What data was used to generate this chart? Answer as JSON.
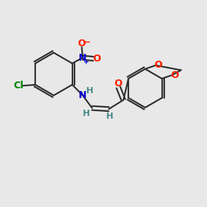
{
  "bg_color": "#e8e8e8",
  "bond_color": "#2d2d2d",
  "atom_colors": {
    "C": "#2d2d2d",
    "N": "#0000cc",
    "O": "#ff2200",
    "Cl": "#008800",
    "H": "#4a8a8a"
  },
  "lw": 1.6
}
